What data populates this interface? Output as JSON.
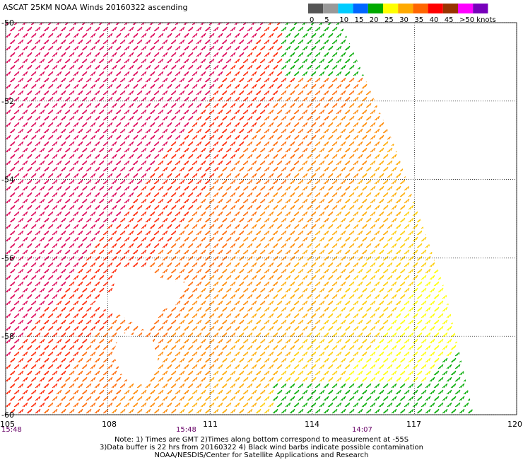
{
  "title": "ASCAT 25KM NOAA Winds 20160322 ascending",
  "colorbar": {
    "ticks": [
      "0",
      "5",
      "10",
      "15",
      "20",
      "25",
      "30",
      "35",
      "40",
      "45",
      ">50 knots"
    ],
    "colors": [
      "#555555",
      "#999999",
      "#00ccff",
      "#0066ff",
      "#00aa00",
      "#ffff00",
      "#ffaa00",
      "#ff6600",
      "#ff0000",
      "#993300",
      "#ff00ff",
      "#7700bb"
    ]
  },
  "lat_labels": [
    "-50",
    "-52",
    "-54",
    "-56",
    "-58",
    "-60"
  ],
  "lon_labels": [
    "105",
    "108",
    "111",
    "114",
    "117",
    "120"
  ],
  "time_labels": [
    "15:48",
    "15:48",
    "14:07"
  ],
  "footnote": {
    "line1": "Note: 1) Times are GMT 2)Times along bottom correspond to measurement at -55S",
    "line2": "3)Data buffer is 22 hrs from 20160322 4) Black wind barbs indicate possible contamination",
    "line3": "NOAA/NESDIS/Center for Satellite Applications and Research"
  },
  "map": {
    "lat_range": [
      -60,
      -50
    ],
    "lon_range": [
      105,
      120
    ],
    "grid": true,
    "grid_style": "dotted"
  }
}
